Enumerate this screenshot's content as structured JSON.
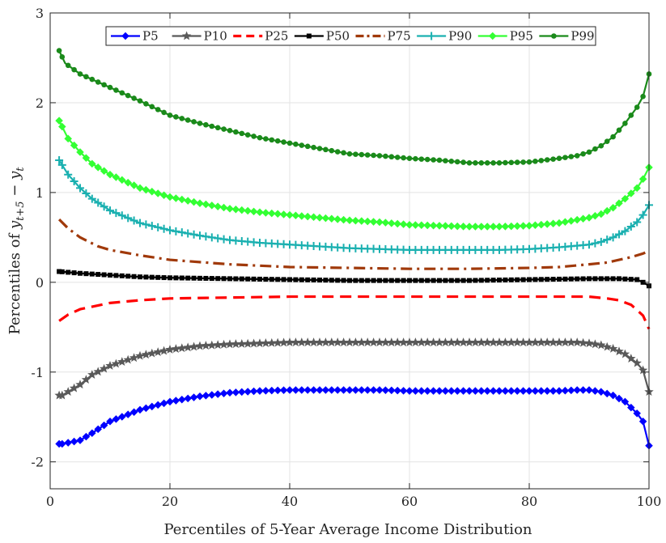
{
  "chart_data": {
    "type": "line",
    "xlabel": "Percentiles of 5-Year Average Income Distribution",
    "ylabel": "Percentiles of ",
    "ylabel_math_base": "y",
    "ylabel_math_sub1": "t+5",
    "ylabel_math_minus": " − ",
    "ylabel_math_base2": "y",
    "ylabel_math_sub2": "t",
    "xlim": [
      0,
      100
    ],
    "ylim": [
      -2.3,
      3
    ],
    "xticks": [
      0,
      20,
      40,
      60,
      80,
      100
    ],
    "xtick_labels": [
      "0",
      "20",
      "40",
      "60",
      "80",
      "100"
    ],
    "yticks": [
      -2,
      -1,
      0,
      1,
      2,
      3
    ],
    "ytick_labels": [
      "-2",
      "-1",
      "0",
      "1",
      "2",
      "3"
    ],
    "grid": true,
    "legend_position": "top",
    "series": [
      {
        "name": "P5",
        "color": "#0000ff",
        "marker": "diamond",
        "dash": "solid",
        "points": [
          [
            1.5,
            -1.8
          ],
          [
            2,
            -1.8
          ],
          [
            5,
            -1.76
          ],
          [
            7,
            -1.68
          ],
          [
            10,
            -1.55
          ],
          [
            15,
            -1.42
          ],
          [
            20,
            -1.33
          ],
          [
            25,
            -1.27
          ],
          [
            30,
            -1.23
          ],
          [
            35,
            -1.21
          ],
          [
            40,
            -1.2
          ],
          [
            45,
            -1.2
          ],
          [
            50,
            -1.2
          ],
          [
            55,
            -1.2
          ],
          [
            60,
            -1.21
          ],
          [
            65,
            -1.21
          ],
          [
            70,
            -1.21
          ],
          [
            75,
            -1.21
          ],
          [
            80,
            -1.21
          ],
          [
            85,
            -1.21
          ],
          [
            88,
            -1.2
          ],
          [
            90,
            -1.2
          ],
          [
            92,
            -1.22
          ],
          [
            94,
            -1.26
          ],
          [
            96,
            -1.33
          ],
          [
            98,
            -1.46
          ],
          [
            99,
            -1.55
          ],
          [
            100,
            -1.82
          ]
        ]
      },
      {
        "name": "P10",
        "color": "#595959",
        "marker": "star",
        "dash": "solid",
        "points": [
          [
            1.5,
            -1.26
          ],
          [
            2,
            -1.26
          ],
          [
            5,
            -1.14
          ],
          [
            7,
            -1.03
          ],
          [
            10,
            -0.93
          ],
          [
            15,
            -0.82
          ],
          [
            20,
            -0.75
          ],
          [
            25,
            -0.71
          ],
          [
            30,
            -0.69
          ],
          [
            35,
            -0.68
          ],
          [
            40,
            -0.67
          ],
          [
            45,
            -0.67
          ],
          [
            50,
            -0.67
          ],
          [
            55,
            -0.67
          ],
          [
            60,
            -0.67
          ],
          [
            65,
            -0.67
          ],
          [
            70,
            -0.67
          ],
          [
            75,
            -0.67
          ],
          [
            80,
            -0.67
          ],
          [
            85,
            -0.67
          ],
          [
            88,
            -0.67
          ],
          [
            90,
            -0.68
          ],
          [
            92,
            -0.7
          ],
          [
            94,
            -0.74
          ],
          [
            96,
            -0.8
          ],
          [
            98,
            -0.9
          ],
          [
            99,
            -0.98
          ],
          [
            100,
            -1.22
          ]
        ]
      },
      {
        "name": "P25",
        "color": "#ff0000",
        "marker": "none",
        "dash": "dash",
        "points": [
          [
            1.5,
            -0.43
          ],
          [
            3,
            -0.36
          ],
          [
            5,
            -0.3
          ],
          [
            10,
            -0.23
          ],
          [
            15,
            -0.2
          ],
          [
            20,
            -0.18
          ],
          [
            30,
            -0.17
          ],
          [
            40,
            -0.16
          ],
          [
            50,
            -0.16
          ],
          [
            60,
            -0.16
          ],
          [
            70,
            -0.16
          ],
          [
            80,
            -0.16
          ],
          [
            90,
            -0.16
          ],
          [
            93,
            -0.18
          ],
          [
            95,
            -0.2
          ],
          [
            97,
            -0.25
          ],
          [
            99,
            -0.37
          ],
          [
            100,
            -0.52
          ]
        ]
      },
      {
        "name": "P50",
        "color": "#000000",
        "marker": "square",
        "dash": "solid",
        "points": [
          [
            1.5,
            0.12
          ],
          [
            5,
            0.1
          ],
          [
            10,
            0.08
          ],
          [
            15,
            0.06
          ],
          [
            20,
            0.05
          ],
          [
            30,
            0.04
          ],
          [
            40,
            0.03
          ],
          [
            50,
            0.02
          ],
          [
            60,
            0.02
          ],
          [
            70,
            0.02
          ],
          [
            80,
            0.03
          ],
          [
            90,
            0.04
          ],
          [
            95,
            0.04
          ],
          [
            98,
            0.03
          ],
          [
            99,
            0.0
          ],
          [
            100,
            -0.04
          ]
        ]
      },
      {
        "name": "P75",
        "color": "#a0390a",
        "marker": "none",
        "dash": "dashdot",
        "points": [
          [
            1.5,
            0.7
          ],
          [
            3,
            0.6
          ],
          [
            5,
            0.5
          ],
          [
            8,
            0.4
          ],
          [
            10,
            0.36
          ],
          [
            15,
            0.3
          ],
          [
            20,
            0.25
          ],
          [
            30,
            0.2
          ],
          [
            40,
            0.17
          ],
          [
            50,
            0.16
          ],
          [
            60,
            0.15
          ],
          [
            70,
            0.15
          ],
          [
            80,
            0.16
          ],
          [
            85,
            0.17
          ],
          [
            90,
            0.2
          ],
          [
            93,
            0.22
          ],
          [
            95,
            0.25
          ],
          [
            97,
            0.28
          ],
          [
            99,
            0.32
          ],
          [
            100,
            0.35
          ]
        ]
      },
      {
        "name": "P90",
        "color": "#1ab0b0",
        "marker": "plus",
        "dash": "solid",
        "points": [
          [
            1.5,
            1.36
          ],
          [
            3,
            1.2
          ],
          [
            5,
            1.05
          ],
          [
            7,
            0.93
          ],
          [
            10,
            0.8
          ],
          [
            15,
            0.66
          ],
          [
            20,
            0.58
          ],
          [
            25,
            0.52
          ],
          [
            30,
            0.47
          ],
          [
            35,
            0.44
          ],
          [
            40,
            0.42
          ],
          [
            45,
            0.4
          ],
          [
            50,
            0.38
          ],
          [
            55,
            0.37
          ],
          [
            60,
            0.36
          ],
          [
            65,
            0.36
          ],
          [
            70,
            0.36
          ],
          [
            75,
            0.36
          ],
          [
            80,
            0.37
          ],
          [
            85,
            0.39
          ],
          [
            90,
            0.42
          ],
          [
            92,
            0.45
          ],
          [
            94,
            0.5
          ],
          [
            96,
            0.57
          ],
          [
            98,
            0.67
          ],
          [
            99,
            0.75
          ],
          [
            100,
            0.86
          ]
        ]
      },
      {
        "name": "P95",
        "color": "#33ff33",
        "marker": "diamond",
        "dash": "solid",
        "points": [
          [
            1.5,
            1.8
          ],
          [
            3,
            1.6
          ],
          [
            5,
            1.45
          ],
          [
            7,
            1.32
          ],
          [
            10,
            1.2
          ],
          [
            15,
            1.05
          ],
          [
            20,
            0.95
          ],
          [
            25,
            0.88
          ],
          [
            30,
            0.82
          ],
          [
            35,
            0.78
          ],
          [
            40,
            0.75
          ],
          [
            45,
            0.72
          ],
          [
            50,
            0.69
          ],
          [
            55,
            0.67
          ],
          [
            60,
            0.64
          ],
          [
            65,
            0.63
          ],
          [
            70,
            0.62
          ],
          [
            75,
            0.62
          ],
          [
            80,
            0.63
          ],
          [
            85,
            0.66
          ],
          [
            90,
            0.72
          ],
          [
            92,
            0.76
          ],
          [
            94,
            0.83
          ],
          [
            96,
            0.93
          ],
          [
            98,
            1.05
          ],
          [
            99,
            1.15
          ],
          [
            100,
            1.28
          ]
        ]
      },
      {
        "name": "P99",
        "color": "#1a8a1a",
        "marker": "circle",
        "dash": "solid",
        "points": [
          [
            1.5,
            2.58
          ],
          [
            2.5,
            2.44
          ],
          [
            5,
            2.32
          ],
          [
            7,
            2.26
          ],
          [
            10,
            2.17
          ],
          [
            15,
            2.02
          ],
          [
            20,
            1.86
          ],
          [
            25,
            1.77
          ],
          [
            30,
            1.69
          ],
          [
            35,
            1.61
          ],
          [
            40,
            1.55
          ],
          [
            45,
            1.49
          ],
          [
            50,
            1.43
          ],
          [
            55,
            1.41
          ],
          [
            60,
            1.38
          ],
          [
            65,
            1.36
          ],
          [
            70,
            1.33
          ],
          [
            75,
            1.33
          ],
          [
            80,
            1.34
          ],
          [
            85,
            1.38
          ],
          [
            88,
            1.41
          ],
          [
            90,
            1.45
          ],
          [
            92,
            1.52
          ],
          [
            94,
            1.62
          ],
          [
            96,
            1.77
          ],
          [
            98,
            1.95
          ],
          [
            99,
            2.07
          ],
          [
            100,
            2.32
          ]
        ]
      }
    ]
  }
}
